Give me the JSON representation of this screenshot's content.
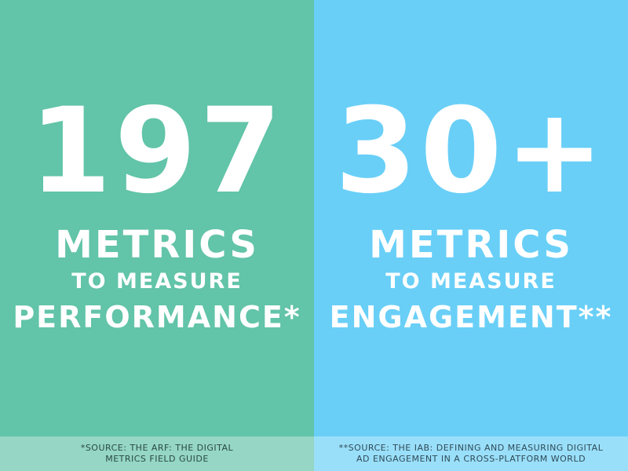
{
  "panels": [
    {
      "number": "197",
      "line1": "METRICS",
      "line2": "TO MEASURE",
      "line3": "PERFORMANCE*",
      "footnote_lines": [
        "*SOURCE: THE ARF: THE DIGITAL",
        "METRICS FIELD GUIDE"
      ]
    },
    {
      "number": "30+",
      "line1": "METRICS",
      "line2": "TO MEASURE",
      "line3": "ENGAGEMENT**",
      "footnote_lines": [
        "**SOURCE: THE IAB: DEFINING AND MEASURING DIGITAL",
        "AD ENGAGEMENT IN A CROSS-PLATFORM WORLD"
      ]
    }
  ]
}
